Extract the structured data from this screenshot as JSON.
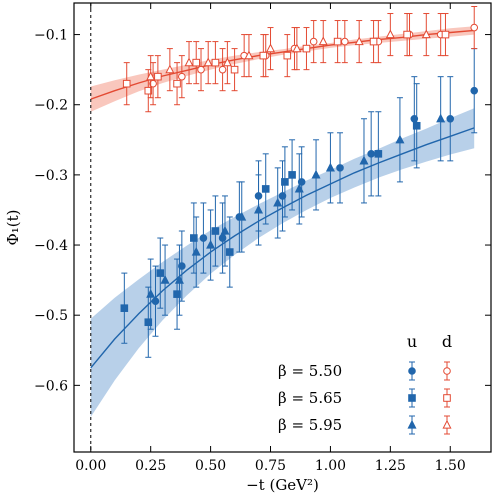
{
  "chart_data": {
    "type": "scatter",
    "xlabel": "−t (GeV²)",
    "ylabel": "Φ₁(t)",
    "xlim": [
      -0.07,
      1.67
    ],
    "ylim": [
      -0.695,
      -0.055
    ],
    "xticks": [
      0.0,
      0.25,
      0.5,
      0.75,
      1.0,
      1.25,
      1.5
    ],
    "xtick_labels": [
      "0.00",
      "0.25",
      "0.50",
      "0.75",
      "1.00",
      "1.25",
      "1.50"
    ],
    "yticks": [
      -0.1,
      -0.2,
      -0.3,
      -0.4,
      -0.5,
      -0.6
    ],
    "ytick_labels": [
      "−0.1",
      "−0.2",
      "−0.3",
      "−0.4",
      "−0.5",
      "−0.6"
    ],
    "vertical_dashed_line_x": 0.0,
    "ticks_direction": "in",
    "grid": false,
    "legend": {
      "placement": "bottom-right",
      "column_headers": [
        "u",
        "d"
      ],
      "rows": [
        {
          "label": "β = 5.50",
          "marker": "circle"
        },
        {
          "label": "β = 5.65",
          "marker": "square"
        },
        {
          "label": "β = 5.95",
          "marker": "triangle"
        }
      ]
    },
    "colors": {
      "u": "#2166ac",
      "d": "#e34a33",
      "u_band": "#a6c4e3",
      "d_band": "#f8b9ac"
    },
    "fits": [
      {
        "name": "u",
        "x": [
          0.0,
          0.1,
          0.2,
          0.3,
          0.4,
          0.5,
          0.6,
          0.7,
          0.8,
          0.9,
          1.0,
          1.1,
          1.2,
          1.3,
          1.4,
          1.5,
          1.6
        ],
        "y": [
          -0.575,
          -0.534,
          -0.498,
          -0.465,
          -0.436,
          -0.41,
          -0.387,
          -0.366,
          -0.347,
          -0.329,
          -0.313,
          -0.297,
          -0.283,
          -0.27,
          -0.257,
          -0.245,
          -0.233
        ],
        "band_lower": [
          -0.645,
          -0.593,
          -0.547,
          -0.507,
          -0.472,
          -0.441,
          -0.414,
          -0.39,
          -0.369,
          -0.35,
          -0.333,
          -0.318,
          -0.304,
          -0.292,
          -0.281,
          -0.271,
          -0.262
        ],
        "band_upper": [
          -0.505,
          -0.475,
          -0.449,
          -0.424,
          -0.401,
          -0.379,
          -0.36,
          -0.342,
          -0.325,
          -0.308,
          -0.293,
          -0.277,
          -0.263,
          -0.248,
          -0.234,
          -0.219,
          -0.205
        ]
      },
      {
        "name": "d",
        "x": [
          0.0,
          0.1,
          0.2,
          0.3,
          0.4,
          0.5,
          0.6,
          0.7,
          0.8,
          0.9,
          1.0,
          1.1,
          1.2,
          1.3,
          1.4,
          1.5,
          1.6
        ],
        "y": [
          -0.192,
          -0.18,
          -0.169,
          -0.159,
          -0.151,
          -0.143,
          -0.136,
          -0.13,
          -0.125,
          -0.12,
          -0.115,
          -0.111,
          -0.107,
          -0.104,
          -0.1,
          -0.097,
          -0.094
        ],
        "band_lower": [
          -0.21,
          -0.195,
          -0.181,
          -0.169,
          -0.159,
          -0.15,
          -0.142,
          -0.135,
          -0.129,
          -0.124,
          -0.119,
          -0.115,
          -0.112,
          -0.109,
          -0.106,
          -0.103,
          -0.1
        ],
        "band_upper": [
          -0.174,
          -0.165,
          -0.157,
          -0.15,
          -0.143,
          -0.136,
          -0.13,
          -0.125,
          -0.121,
          -0.116,
          -0.112,
          -0.107,
          -0.103,
          -0.099,
          -0.095,
          -0.091,
          -0.088
        ]
      }
    ],
    "series": [
      {
        "flavor": "u",
        "beta": "5.50",
        "marker": "circle",
        "points": [
          [
            0.27,
            -0.48,
            0.05
          ],
          [
            0.38,
            -0.43,
            0.05
          ],
          [
            0.47,
            -0.39,
            0.05
          ],
          [
            0.55,
            -0.39,
            0.05
          ],
          [
            0.62,
            -0.36,
            0.05
          ],
          [
            0.7,
            -0.33,
            0.05
          ],
          [
            0.8,
            -0.33,
            0.05
          ],
          [
            0.88,
            -0.31,
            0.05
          ],
          [
            1.04,
            -0.29,
            0.05
          ],
          [
            1.17,
            -0.27,
            0.06
          ],
          [
            1.35,
            -0.22,
            0.06
          ],
          [
            1.5,
            -0.22,
            0.06
          ],
          [
            1.6,
            -0.18,
            0.06
          ]
        ]
      },
      {
        "flavor": "u",
        "beta": "5.65",
        "marker": "square",
        "points": [
          [
            0.14,
            -0.49,
            0.05
          ],
          [
            0.24,
            -0.51,
            0.05
          ],
          [
            0.29,
            -0.44,
            0.05
          ],
          [
            0.36,
            -0.47,
            0.05
          ],
          [
            0.43,
            -0.39,
            0.05
          ],
          [
            0.52,
            -0.38,
            0.05
          ],
          [
            0.58,
            -0.41,
            0.05
          ],
          [
            0.73,
            -0.32,
            0.05
          ],
          [
            0.81,
            -0.31,
            0.05
          ],
          [
            0.84,
            -0.3,
            0.05
          ],
          [
            1.2,
            -0.27,
            0.06
          ],
          [
            1.36,
            -0.23,
            0.06
          ]
        ]
      },
      {
        "flavor": "u",
        "beta": "5.95",
        "marker": "triangle",
        "points": [
          [
            0.25,
            -0.47,
            0.05
          ],
          [
            0.31,
            -0.45,
            0.05
          ],
          [
            0.37,
            -0.45,
            0.05
          ],
          [
            0.44,
            -0.41,
            0.05
          ],
          [
            0.5,
            -0.4,
            0.05
          ],
          [
            0.56,
            -0.38,
            0.05
          ],
          [
            0.63,
            -0.36,
            0.05
          ],
          [
            0.7,
            -0.35,
            0.05
          ],
          [
            0.78,
            -0.34,
            0.05
          ],
          [
            0.87,
            -0.32,
            0.05
          ],
          [
            0.94,
            -0.3,
            0.05
          ],
          [
            1.0,
            -0.29,
            0.05
          ],
          [
            1.14,
            -0.28,
            0.06
          ],
          [
            1.29,
            -0.25,
            0.06
          ],
          [
            1.46,
            -0.22,
            0.06
          ]
        ]
      },
      {
        "flavor": "d",
        "beta": "5.50",
        "marker": "circle",
        "points": [
          [
            0.26,
            -0.17,
            0.03
          ],
          [
            0.38,
            -0.16,
            0.03
          ],
          [
            0.46,
            -0.15,
            0.03
          ],
          [
            0.55,
            -0.15,
            0.03
          ],
          [
            0.64,
            -0.13,
            0.03
          ],
          [
            0.73,
            -0.13,
            0.03
          ],
          [
            0.85,
            -0.12,
            0.03
          ],
          [
            0.93,
            -0.11,
            0.03
          ],
          [
            1.06,
            -0.11,
            0.03
          ],
          [
            1.2,
            -0.11,
            0.03
          ],
          [
            1.33,
            -0.1,
            0.03
          ],
          [
            1.46,
            -0.1,
            0.03
          ],
          [
            1.6,
            -0.09,
            0.03
          ]
        ]
      },
      {
        "flavor": "d",
        "beta": "5.65",
        "marker": "square",
        "points": [
          [
            0.15,
            -0.17,
            0.03
          ],
          [
            0.24,
            -0.18,
            0.03
          ],
          [
            0.28,
            -0.16,
            0.03
          ],
          [
            0.36,
            -0.17,
            0.03
          ],
          [
            0.44,
            -0.14,
            0.03
          ],
          [
            0.52,
            -0.14,
            0.03
          ],
          [
            0.6,
            -0.15,
            0.03
          ],
          [
            0.72,
            -0.13,
            0.03
          ],
          [
            0.82,
            -0.13,
            0.03
          ],
          [
            0.9,
            -0.12,
            0.03
          ],
          [
            1.03,
            -0.11,
            0.03
          ],
          [
            1.18,
            -0.11,
            0.03
          ],
          [
            1.32,
            -0.1,
            0.03
          ],
          [
            1.48,
            -0.1,
            0.03
          ]
        ]
      },
      {
        "flavor": "d",
        "beta": "5.95",
        "marker": "triangle",
        "points": [
          [
            0.25,
            -0.16,
            0.03
          ],
          [
            0.33,
            -0.15,
            0.03
          ],
          [
            0.41,
            -0.14,
            0.03
          ],
          [
            0.49,
            -0.14,
            0.03
          ],
          [
            0.57,
            -0.14,
            0.03
          ],
          [
            0.66,
            -0.13,
            0.03
          ],
          [
            0.75,
            -0.12,
            0.03
          ],
          [
            0.86,
            -0.12,
            0.03
          ],
          [
            0.97,
            -0.11,
            0.03
          ],
          [
            1.12,
            -0.11,
            0.03
          ],
          [
            1.25,
            -0.1,
            0.03
          ],
          [
            1.4,
            -0.1,
            0.03
          ]
        ]
      }
    ]
  }
}
